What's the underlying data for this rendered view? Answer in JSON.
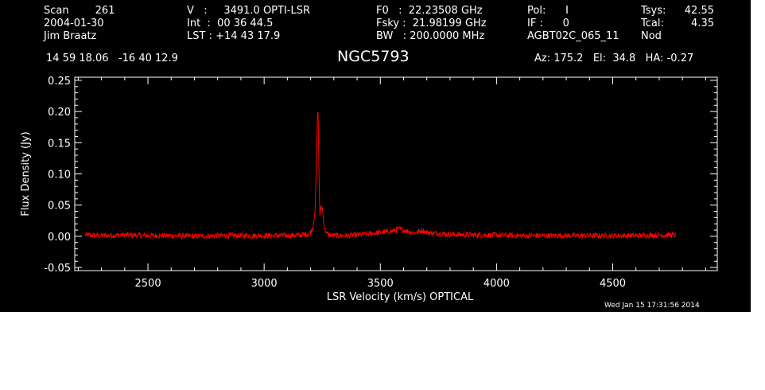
{
  "header": {
    "col1": [
      "Scan        261",
      "2004-01-30",
      "Jim Braatz"
    ],
    "col2": [
      "V   :     3491.0 OPTI-LSR",
      "Int  :  00 36 44.5",
      "LST : +14 43 17.9"
    ],
    "col3": [
      "F0   :  22.23508 GHz",
      "Fsky :  21.98199 GHz",
      "BW   : 200.0000 MHz"
    ],
    "col4": [
      "Pol:      I",
      "IF :      0",
      "AGBT02C_065_11"
    ],
    "col5": [
      "Tsys:",
      "Tcal:",
      "Nod"
    ],
    "col6": [
      "42.55",
      "4.35",
      ""
    ],
    "coords": "14 59 18.06   -16 40 12.9",
    "source": "NGC5793",
    "azelha": "Az: 175.2   El:  34.8   HA: -0.27",
    "timestamp": "Wed Jan 15 17:31:56 2014"
  },
  "colors": {
    "background": "#000000",
    "axes": "#ffffff",
    "spectrum": "#ff0000"
  },
  "chart_data": {
    "type": "line",
    "title": "NGC5793",
    "xlabel": "LSR Velocity (km/s) OPTICAL",
    "ylabel": "Flux Density (Jy)",
    "xlim": [
      2185,
      4950
    ],
    "ylim": [
      -0.055,
      0.255
    ],
    "xticks": [
      2500,
      3000,
      3500,
      4000,
      4500
    ],
    "xtick_labels": [
      "2500",
      "3000",
      "3500",
      "4000",
      "4500"
    ],
    "yticks": [
      -0.05,
      0.0,
      0.05,
      0.1,
      0.15,
      0.2,
      0.25
    ],
    "ytick_labels": [
      "-0.05",
      "0.00",
      "0.05",
      "0.10",
      "0.15",
      "0.20",
      "0.25"
    ],
    "grid": false,
    "series": [
      {
        "x": [
          2230,
          2300,
          2400,
          2500,
          2600,
          2700,
          2800,
          2900,
          3000,
          3100,
          3150,
          3180,
          3200,
          3210,
          3220,
          3225,
          3230,
          3233,
          3236,
          3240,
          3245,
          3250,
          3255,
          3260,
          3270,
          3280,
          3300,
          3350,
          3400,
          3450,
          3500,
          3550,
          3580,
          3600,
          3650,
          3680,
          3700,
          3800,
          3900,
          4000,
          4100,
          4200,
          4300,
          4400,
          4500,
          4600,
          4700,
          4770
        ],
        "y": [
          0.002,
          0.001,
          0.002,
          0.001,
          0.001,
          0.0,
          0.001,
          0.001,
          0.001,
          0.001,
          0.002,
          0.003,
          0.006,
          0.015,
          0.045,
          0.12,
          0.205,
          0.19,
          0.1,
          0.03,
          0.05,
          0.045,
          0.03,
          0.012,
          0.004,
          0.002,
          0.001,
          0.001,
          0.002,
          0.004,
          0.006,
          0.008,
          0.012,
          0.01,
          0.005,
          0.01,
          0.006,
          0.003,
          0.002,
          0.002,
          0.001,
          0.001,
          0.001,
          0.001,
          0.001,
          0.001,
          0.002,
          0.002
        ]
      }
    ]
  }
}
